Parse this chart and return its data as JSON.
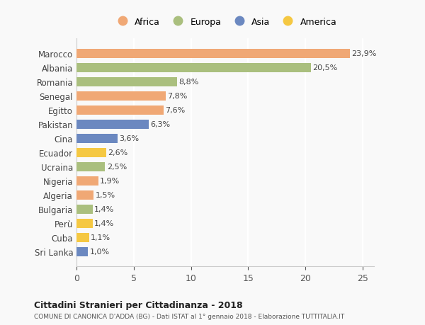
{
  "countries": [
    "Sri Lanka",
    "Cuba",
    "Perù",
    "Bulgaria",
    "Algeria",
    "Nigeria",
    "Ucraina",
    "Ecuador",
    "Cina",
    "Pakistan",
    "Egitto",
    "Senegal",
    "Romania",
    "Albania",
    "Marocco"
  ],
  "values": [
    1.0,
    1.1,
    1.4,
    1.4,
    1.5,
    1.9,
    2.5,
    2.6,
    3.6,
    6.3,
    7.6,
    7.8,
    8.8,
    20.5,
    23.9
  ],
  "continents": [
    "Asia",
    "America",
    "America",
    "Europa",
    "Africa",
    "Africa",
    "Europa",
    "America",
    "Asia",
    "Asia",
    "Africa",
    "Africa",
    "Europa",
    "Europa",
    "Africa"
  ],
  "colors": {
    "Africa": "#F0A875",
    "Europa": "#AABF7E",
    "Asia": "#6B88C0",
    "America": "#F5C842"
  },
  "labels": [
    "1,0%",
    "1,1%",
    "1,4%",
    "1,4%",
    "1,5%",
    "1,9%",
    "2,5%",
    "2,6%",
    "3,6%",
    "6,3%",
    "7,6%",
    "7,8%",
    "8,8%",
    "20,5%",
    "23,9%"
  ],
  "xlim": [
    0,
    26
  ],
  "xticks": [
    0,
    5,
    10,
    15,
    20,
    25
  ],
  "title1": "Cittadini Stranieri per Cittadinanza - 2018",
  "title2": "COMUNE DI CANONICA D'ADDA (BG) - Dati ISTAT al 1° gennaio 2018 - Elaborazione TUTTITALIA.IT",
  "legend_order": [
    "Africa",
    "Europa",
    "Asia",
    "America"
  ],
  "background_color": "#f9f9f9",
  "grid_color": "#ffffff",
  "bar_height": 0.65
}
